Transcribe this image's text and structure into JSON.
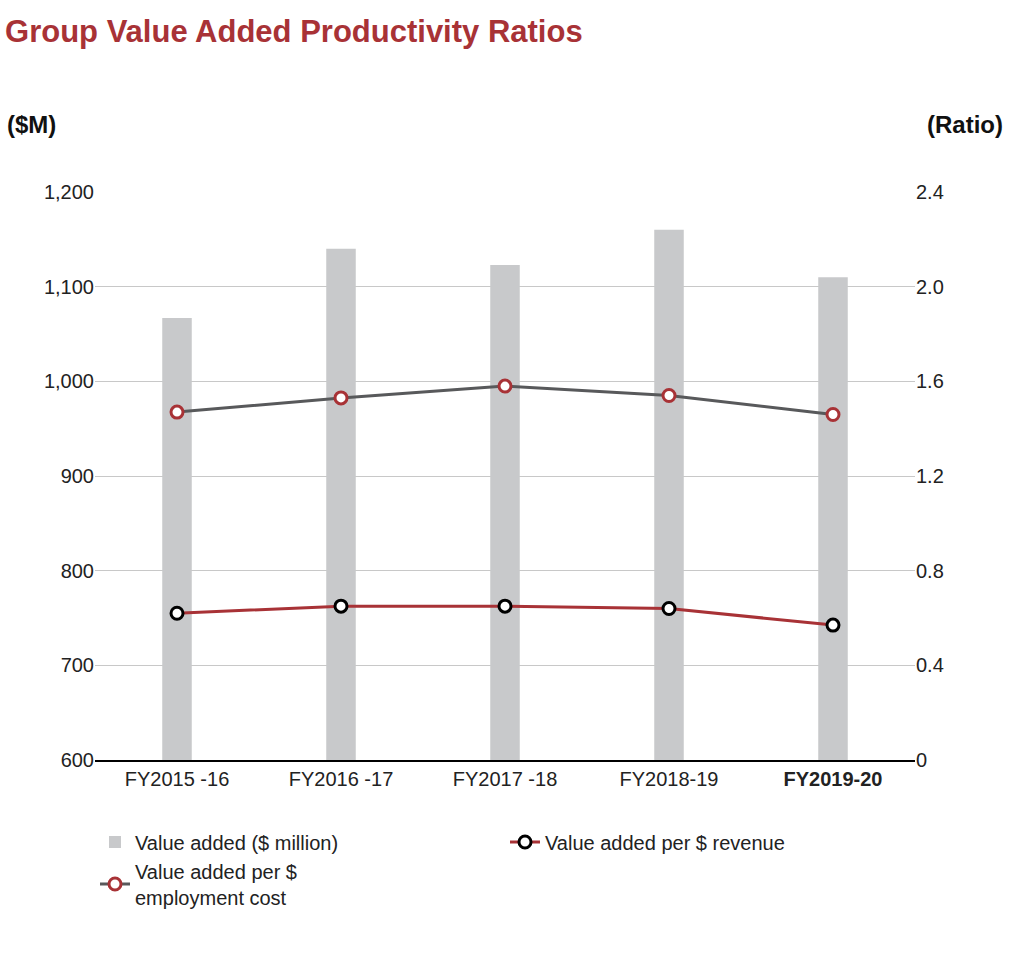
{
  "chart_data": {
    "type": "bar",
    "title": "Group Value Added Productivity Ratios",
    "y_label": "($M)",
    "y2_label": "(Ratio)",
    "categories": [
      "FY2015 -16",
      "FY2016 -17",
      "FY2017 -18",
      "FY2018-19",
      "FY2019-20"
    ],
    "series": [
      {
        "name": "Value added ($ million)",
        "type": "bar",
        "color": "#c8c9cb",
        "values": [
          1067,
          1140,
          1123,
          1160,
          1110
        ]
      },
      {
        "name": "Value added per $ revenue",
        "type": "line",
        "axis": "y2",
        "color": "#a83236",
        "marker": "circle",
        "values": [
          0.62,
          0.65,
          0.65,
          0.64,
          0.57
        ]
      },
      {
        "name": "Value added per $ employment cost",
        "type": "line",
        "axis": "y2",
        "color": "#58595b",
        "marker": "circle",
        "values": [
          1.47,
          1.53,
          1.58,
          1.54,
          1.46
        ]
      }
    ],
    "ylim": [
      600,
      1200
    ],
    "yticks": [
      600,
      700,
      800,
      900,
      {
        "value": 1000,
        "label": "1,000"
      },
      {
        "value": 1100,
        "label": "1,100"
      },
      {
        "value": 1200,
        "label": "1,200"
      }
    ],
    "y2lim": [
      0,
      2.4
    ],
    "y2ticks": [
      0,
      0.4,
      0.8,
      1.2,
      1.6,
      {
        "value": 2,
        "label": "2.0"
      },
      2.4
    ],
    "grid": true,
    "legend": "bottom"
  }
}
